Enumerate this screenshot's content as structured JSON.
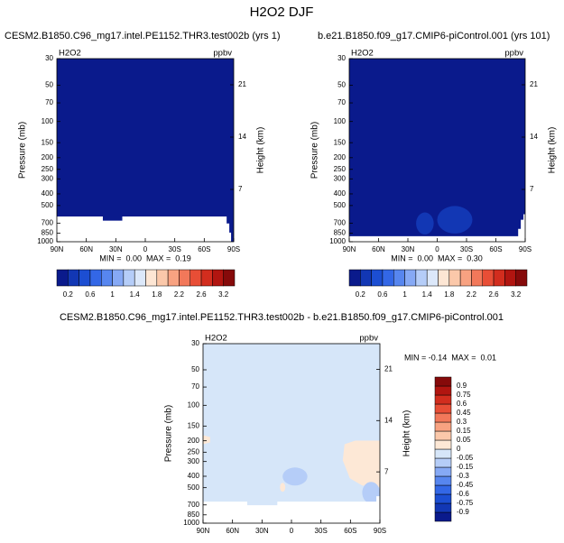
{
  "title": "H2O2 DJF",
  "chart_data": [
    {
      "type": "contour",
      "title": "CESM2.B1850.C96_mg17.intel.PE1152.THR3.test002b (yrs 1)",
      "left_label": "H2O2",
      "right_label": "ppbv",
      "ylabel": "Pressure (mb)",
      "y2label": "Height (km)",
      "annotation": "MIN =  0.00  MAX =  0.19",
      "xlim": [
        90,
        -90
      ],
      "xticks": [
        {
          "value": 90,
          "label": "90N"
        },
        {
          "value": 60,
          "label": "60N"
        },
        {
          "value": 30,
          "label": "30N"
        },
        0,
        {
          "value": -30,
          "label": "30S"
        },
        {
          "value": -60,
          "label": "60S"
        },
        {
          "value": -90,
          "label": "90S"
        }
      ],
      "ylim": [
        1000,
        30
      ],
      "ylog": true,
      "yticks": [
        30,
        50,
        70,
        100,
        150,
        200,
        250,
        300,
        400,
        500,
        700,
        850,
        1000
      ],
      "y2lim": [
        0,
        24.5
      ],
      "y2ticks": [
        7,
        14,
        21
      ],
      "colorbar_orientation": "horizontal",
      "colorbar_colors": [
        "#0a1a8c",
        "#1237b4",
        "#1c4ed2",
        "#3367e6",
        "#5786ef",
        "#86a9f5",
        "#b5cdf8",
        "#dce8fa",
        "#fde6d4",
        "#fbc8aa",
        "#f8a281",
        "#f2785a",
        "#e84e36",
        "#d22d1e",
        "#b11510",
        "#860a0a"
      ],
      "colorbar_labels": [
        0.2,
        0.6,
        1,
        1.4,
        1.8,
        2.2,
        2.6,
        3.2
      ]
    },
    {
      "type": "contour",
      "title": "b.e21.B1850.f09_g17.CMIP6-piControl.001 (yrs 101)",
      "left_label": "H2O2",
      "right_label": "ppbv",
      "ylabel": "Pressure (mb)",
      "y2label": "Height (km)",
      "annotation": "MIN =  0.00  MAX =  0.30",
      "xlim": [
        90,
        -90
      ],
      "xticks": [
        {
          "value": 90,
          "label": "90N"
        },
        {
          "value": 60,
          "label": "60N"
        },
        {
          "value": 30,
          "label": "30N"
        },
        0,
        {
          "value": -30,
          "label": "30S"
        },
        {
          "value": -60,
          "label": "60S"
        },
        {
          "value": -90,
          "label": "90S"
        }
      ],
      "ylim": [
        1000,
        30
      ],
      "ylog": true,
      "yticks": [
        30,
        50,
        70,
        100,
        150,
        200,
        250,
        300,
        400,
        500,
        700,
        850,
        1000
      ],
      "y2lim": [
        0,
        24.5
      ],
      "y2ticks": [
        7,
        14,
        21
      ],
      "colorbar_orientation": "horizontal",
      "colorbar_colors": [
        "#0a1a8c",
        "#1237b4",
        "#1c4ed2",
        "#3367e6",
        "#5786ef",
        "#86a9f5",
        "#b5cdf8",
        "#dce8fa",
        "#fde6d4",
        "#fbc8aa",
        "#f8a281",
        "#f2785a",
        "#e84e36",
        "#d22d1e",
        "#b11510",
        "#860a0a"
      ],
      "colorbar_labels": [
        0.2,
        0.6,
        1,
        1.4,
        1.8,
        2.2,
        2.6,
        3.2
      ]
    },
    {
      "type": "contour",
      "title": "CESM2.B1850.C96_mg17.intel.PE1152.THR3.test002b - b.e21.B1850.f09_g17.CMIP6-piControl.001",
      "left_label": "H2O2",
      "right_label": "ppbv",
      "ylabel": "Pressure (mb)",
      "y2label": "Height (km)",
      "annotation": "MIN = -0.14  MAX =  0.01",
      "xlim": [
        90,
        -90
      ],
      "xticks": [
        {
          "value": 90,
          "label": "90N"
        },
        {
          "value": 60,
          "label": "60N"
        },
        {
          "value": 30,
          "label": "30N"
        },
        0,
        {
          "value": -30,
          "label": "30S"
        },
        {
          "value": -60,
          "label": "60S"
        },
        {
          "value": -90,
          "label": "90S"
        }
      ],
      "ylim": [
        1000,
        30
      ],
      "ylog": true,
      "yticks": [
        30,
        50,
        70,
        100,
        150,
        200,
        250,
        300,
        400,
        500,
        700,
        850,
        1000
      ],
      "y2lim": [
        0,
        24.5
      ],
      "y2ticks": [
        7,
        14,
        21
      ],
      "colorbar_orientation": "vertical",
      "colorbar_colors": [
        "#0a1a8c",
        "#1237b4",
        "#1c4ed2",
        "#3367e6",
        "#5786ef",
        "#86a9f5",
        "#b5cdf8",
        "#d6e6f9",
        "#fde8d6",
        "#fbc8aa",
        "#f8a281",
        "#f2785a",
        "#e84e36",
        "#d22d1e",
        "#b11510",
        "#860a0a"
      ],
      "colorbar_labels": [
        -0.9,
        -0.75,
        -0.6,
        -0.45,
        -0.3,
        -0.15,
        -0.05,
        0,
        0.05,
        0.15,
        0.3,
        0.45,
        0.6,
        0.75,
        0.9
      ]
    }
  ]
}
